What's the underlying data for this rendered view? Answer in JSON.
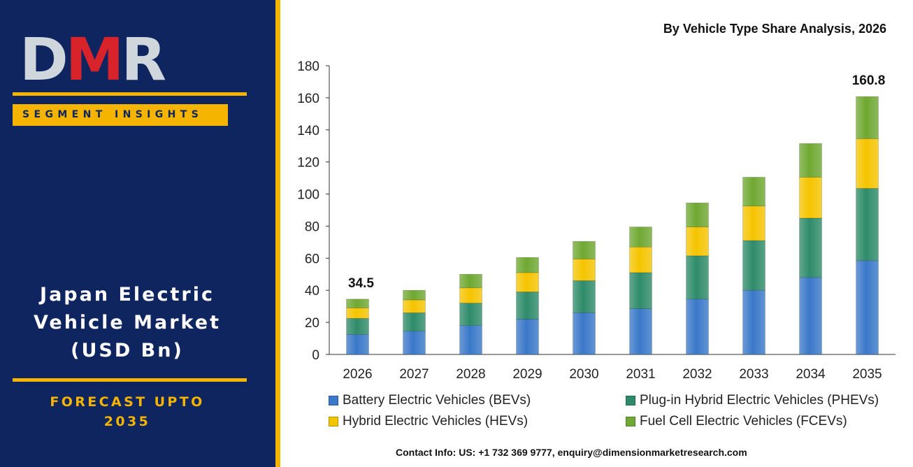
{
  "brand": {
    "logo_letters": [
      "D",
      "M",
      "R"
    ],
    "segment_label": "SEGMENT INSIGHTS",
    "title_lines": [
      "Japan Electric",
      "Vehicle Market",
      "(USD Bn)"
    ],
    "forecast_lines": [
      "FORECAST UPTO",
      "2035"
    ],
    "colors": {
      "navy": "#0f2560",
      "gold": "#f4b400",
      "logo_red": "#d9232b",
      "logo_grey": "#cfd6dc"
    }
  },
  "contact": "Contact Info: US: +1 732 369 9777, enquiry@dimensionmarketresearch.com",
  "chart_data": {
    "type": "bar",
    "stacked": true,
    "title": "By Vehicle Type Share Analysis, 2026",
    "categories": [
      "2026",
      "2027",
      "2028",
      "2029",
      "2030",
      "2031",
      "2032",
      "2033",
      "2034",
      "2035"
    ],
    "series": [
      {
        "name": "Battery Electric Vehicles (BEVs)",
        "color": "#3a78c8",
        "values": [
          12.5,
          14.5,
          18,
          22,
          26,
          28.5,
          34.5,
          40,
          48,
          58.5
        ]
      },
      {
        "name": "Plug-in Hybrid Electric Vehicles (PHEVs)",
        "color": "#2e8b6a",
        "values": [
          10,
          11.5,
          14,
          17,
          20,
          22.5,
          27,
          31,
          37,
          45
        ]
      },
      {
        "name": "Hybrid Electric Vehicles (HEVs)",
        "color": "#f5c400",
        "values": [
          6.5,
          8,
          9.5,
          12,
          13.5,
          16,
          18,
          21.5,
          25.5,
          31
        ]
      },
      {
        "name": "Fuel Cell Electric Vehicles (FCEVs)",
        "color": "#6fa832",
        "values": [
          5.5,
          6,
          8.5,
          9.5,
          11,
          12.5,
          15,
          18,
          21,
          26.3
        ]
      }
    ],
    "data_labels": [
      {
        "category": "2026",
        "text": "34.5"
      },
      {
        "category": "2035",
        "text": "160.8"
      }
    ],
    "ylim": [
      0,
      180
    ],
    "yticks": [
      0,
      20,
      40,
      60,
      80,
      100,
      120,
      140,
      160,
      180
    ],
    "grid": false,
    "legend_position": "bottom"
  }
}
